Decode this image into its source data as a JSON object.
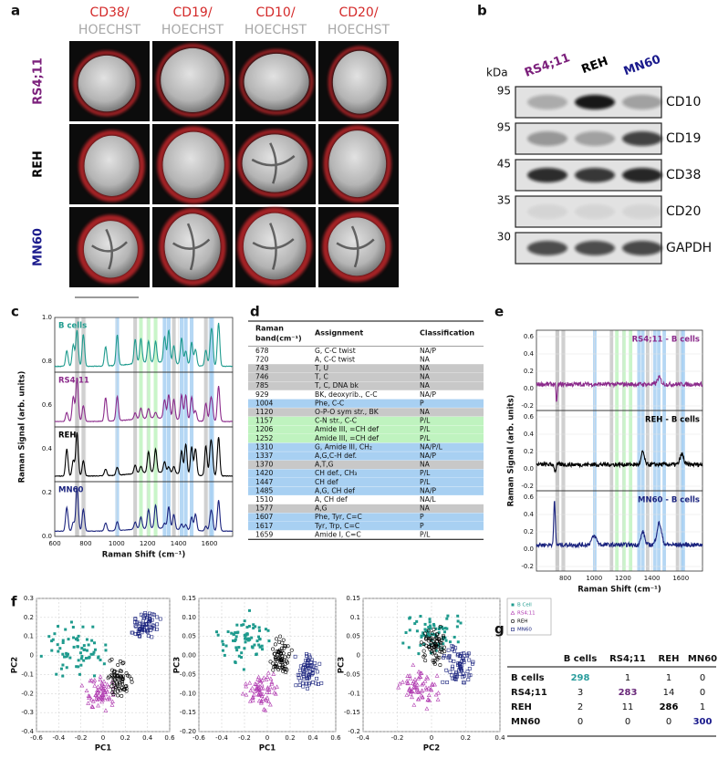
{
  "a": {
    "letter": "a",
    "markers": [
      "CD38/",
      "CD19/",
      "CD10/",
      "CD20/"
    ],
    "stain": "HOECHST",
    "cell_lines": [
      {
        "name": "RS4;11",
        "color": "#7b1f7b"
      },
      {
        "name": "REH",
        "color": "#000000"
      },
      {
        "name": "MN60",
        "color": "#1a1a8c"
      }
    ]
  },
  "b": {
    "letter": "b",
    "unit": "kDa",
    "lanes": [
      {
        "name": "RS4;11",
        "color": "#7b1f7b"
      },
      {
        "name": "REH",
        "color": "#000000"
      },
      {
        "name": "MN60",
        "color": "#1a1a8c"
      }
    ],
    "blots": [
      {
        "kda": "95",
        "protein": "CD10"
      },
      {
        "kda": "95",
        "protein": "CD19"
      },
      {
        "kda": "45",
        "protein": "CD38"
      },
      {
        "kda": "35",
        "protein": "CD20"
      },
      {
        "kda": "30",
        "protein": "GAPDH"
      }
    ]
  },
  "c": {
    "letter": "c",
    "y_label": "Raman Signal (arb. units)",
    "x_label": "Raman Shift (cm⁻¹)",
    "y_ticks": [
      "0.0",
      "0.2",
      "0.4",
      "0.6",
      "0.8",
      "1.0"
    ],
    "x_ticks": [
      "600",
      "800",
      "1000",
      "1200",
      "1400",
      "1600"
    ],
    "traces": [
      {
        "name": "B cells",
        "color": "#1f9b8e"
      },
      {
        "name": "RS4;11",
        "color": "#8b2a8b"
      },
      {
        "name": "REH",
        "color": "#000000"
      },
      {
        "name": "MN60",
        "color": "#1a237e"
      }
    ]
  },
  "d": {
    "letter": "d",
    "header": {
      "band": [
        "Raman",
        "band(cm⁻¹)"
      ],
      "assignment": "Assignment",
      "class": "Classification"
    },
    "rows": [
      {
        "band": "678",
        "assignment": "G, C-C twist",
        "class": "NA/P",
        "shade": "#ffffff"
      },
      {
        "band": "720",
        "assignment": "A, C-C twist",
        "class": "NA",
        "shade": "#ffffff"
      },
      {
        "band": "743",
        "assignment": "T, U",
        "class": "NA",
        "shade": "#c8c8c8"
      },
      {
        "band": "746",
        "assignment": "T, C",
        "class": "NA",
        "shade": "#c8c8c8"
      },
      {
        "band": "785",
        "assignment": "T, C, DNA bk",
        "class": "NA",
        "shade": "#c8c8c8"
      },
      {
        "band": "929",
        "assignment": "BK, deoxyrib., C-C",
        "class": "NA/P",
        "shade": "#ffffff"
      },
      {
        "band": "1004",
        "assignment": "Phe, C-C",
        "class": "P",
        "shade": "#a8d0f2"
      },
      {
        "band": "1120",
        "assignment": "O-P-O sym str., BK",
        "class": "NA",
        "shade": "#c8c8c8"
      },
      {
        "band": "1157",
        "assignment": "C-N str., C-C",
        "class": "P/L",
        "shade": "#bff3bf"
      },
      {
        "band": "1206",
        "assignment": "Amide III, =CH def",
        "class": "P/L",
        "shade": "#bff3bf"
      },
      {
        "band": "1252",
        "assignment": "Amide III, =CH def",
        "class": "P/L",
        "shade": "#bff3bf"
      },
      {
        "band": "1310",
        "assignment": "G, Amide III, CH₂",
        "class": "NA/P/L",
        "shade": "#a8d0f2"
      },
      {
        "band": "1337",
        "assignment": "A,G,C-H def.",
        "class": "NA/P",
        "shade": "#a8d0f2"
      },
      {
        "band": "1370",
        "assignment": "A,T,G",
        "class": "NA",
        "shade": "#c8c8c8"
      },
      {
        "band": "1420",
        "assignment": "CH def., CH₃",
        "class": "P/L",
        "shade": "#a8d0f2"
      },
      {
        "band": "1447",
        "assignment": "CH def",
        "class": "P/L",
        "shade": "#a8d0f2"
      },
      {
        "band": "1485",
        "assignment": "A,G, CH def",
        "class": "NA/P",
        "shade": "#a8d0f2"
      },
      {
        "band": "1510",
        "assignment": "A, CH def",
        "class": "NA/L",
        "shade": "#ffffff"
      },
      {
        "band": "1577",
        "assignment": "A,G",
        "class": "NA",
        "shade": "#c8c8c8"
      },
      {
        "band": "1607",
        "assignment": "Phe, Tyr, C=C",
        "class": "P",
        "shade": "#a8d0f2"
      },
      {
        "band": "1617",
        "assignment": "Tyr, Trp, C=C",
        "class": "P",
        "shade": "#a8d0f2"
      },
      {
        "band": "1659",
        "assignment": "Amide I, C=C",
        "class": "P/L",
        "shade": "#ffffff"
      }
    ]
  },
  "e": {
    "letter": "e",
    "y_label": "Raman Signal (arb. units)",
    "x_label": "Raman Shift (cm⁻¹)",
    "y_ticks": [
      "-0.2",
      "0.0",
      "0.2",
      "0.4",
      "0.6"
    ],
    "x_ticks": [
      "800",
      "1000",
      "1200",
      "1400",
      "1600"
    ],
    "traces": [
      {
        "name": "RS4;11 - B cells",
        "color": "#8b2a8b"
      },
      {
        "name": "REH - B cells",
        "color": "#000000"
      },
      {
        "name": "MN60 - B cells",
        "color": "#1a237e"
      }
    ]
  },
  "f": {
    "letter": "f",
    "plots": [
      {
        "x_label": "PC1",
        "y_label": "PC2",
        "x_ticks": [
          "-0.6",
          "-0.4",
          "-0.2",
          "0",
          "0.2",
          "0.4",
          "0.6"
        ],
        "y_ticks": [
          "-0.4",
          "-0.3",
          "-0.2",
          "-0.1",
          "0",
          "0.1",
          "0.2",
          "0.3"
        ]
      },
      {
        "x_label": "PC1",
        "y_label": "PC3",
        "x_ticks": [
          "-0.6",
          "-0.4",
          "-0.2",
          "0",
          "0.2",
          "0.4",
          "0.6"
        ],
        "y_ticks": [
          "-0.20",
          "-0.15",
          "-0.10",
          "-0.05",
          "0.00",
          "0.05",
          "0.10",
          "0.15"
        ]
      },
      {
        "x_label": "PC2",
        "y_label": "PC3",
        "x_ticks": [
          "-0.4",
          "-0.2",
          "0",
          "0.2",
          "0.4"
        ],
        "y_ticks": [
          "-0.2",
          "-0.15",
          "-0.1",
          "-0.05",
          "0",
          "0.05",
          "0.1",
          "0.15"
        ]
      }
    ],
    "legend": [
      {
        "name": "B Cell",
        "color": "#1f9b8e",
        "marker": "square"
      },
      {
        "name": "RS4;11",
        "color": "#b03ab0",
        "marker": "triangle"
      },
      {
        "name": "REH",
        "color": "#000000",
        "marker": "circle"
      },
      {
        "name": "MN60",
        "color": "#1a237e",
        "marker": "open-square"
      }
    ]
  },
  "g": {
    "letter": "g",
    "columns": [
      "B cells",
      "RS4;11",
      "REH",
      "MN60"
    ],
    "rows": [
      {
        "label": "B cells",
        "values": [
          "298",
          "1",
          "1",
          "0"
        ]
      },
      {
        "label": "RS4;11",
        "values": [
          "3",
          "283",
          "14",
          "0"
        ]
      },
      {
        "label": "REH",
        "values": [
          "2",
          "11",
          "286",
          "1"
        ]
      },
      {
        "label": "MN60",
        "values": [
          "0",
          "0",
          "0",
          "300"
        ]
      }
    ],
    "diagonal_colors": [
      "#2a9d9d",
      "#6a2a7a",
      "#000000",
      "#1a1a8c"
    ]
  }
}
